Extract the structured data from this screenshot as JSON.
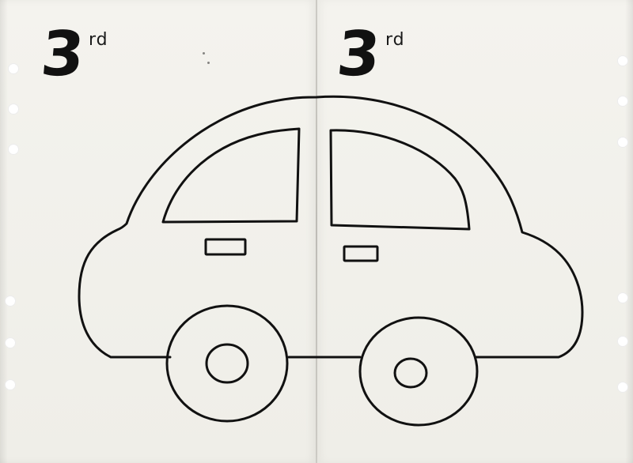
{
  "labels": {
    "left": {
      "number": "3",
      "suffix": "rd"
    },
    "right": {
      "number": "3",
      "suffix": "rd"
    }
  },
  "colors": {
    "paper": "#f1f0ea",
    "ink": "#111111",
    "punch_holes": "#ffffff"
  },
  "icons": {
    "drawing": "car-outline"
  }
}
